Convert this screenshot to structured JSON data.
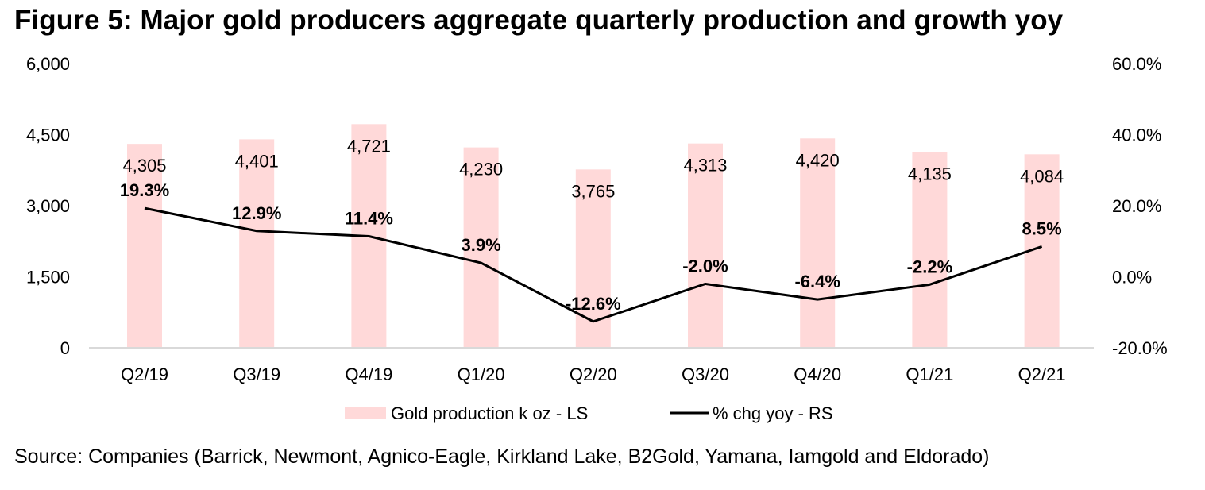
{
  "header": {
    "title": "Figure 5: Major gold producers aggregate quarterly production and growth yoy"
  },
  "footer": {
    "source": "Source: Companies (Barrick, Newmont, Agnico-Eagle, Kirkland Lake, B2Gold, Yamana, Iamgold and Eldorado)"
  },
  "chart_data": {
    "type": "bar",
    "title": "Figure 5: Major gold producers aggregate quarterly production and growth yoy",
    "categories": [
      "Q2/19",
      "Q3/19",
      "Q4/19",
      "Q1/20",
      "Q2/20",
      "Q3/20",
      "Q4/20",
      "Q1/21",
      "Q2/21"
    ],
    "series": [
      {
        "name": "Gold production k oz - LS",
        "type": "bar",
        "axis": "left",
        "color": "#ffd9d9",
        "values": [
          4305,
          4401,
          4721,
          4230,
          3765,
          4313,
          4420,
          4135,
          4084
        ],
        "labels": [
          "4,305",
          "4,401",
          "4,721",
          "4,230",
          "3,765",
          "4,313",
          "4,420",
          "4,135",
          "4,084"
        ]
      },
      {
        "name": "% chg yoy - RS",
        "type": "line",
        "axis": "right",
        "color": "#000000",
        "values": [
          19.3,
          12.9,
          11.4,
          3.9,
          -12.6,
          -2.0,
          -6.4,
          -2.2,
          8.5
        ],
        "labels": [
          "19.3%",
          "12.9%",
          "11.4%",
          "3.9%",
          "-12.6%",
          "-2.0%",
          "-6.4%",
          "-2.2%",
          "8.5%"
        ]
      }
    ],
    "left_axis": {
      "ylim": [
        0,
        6000
      ],
      "ticks": [
        0,
        1500,
        3000,
        4500,
        6000
      ],
      "tick_labels": [
        "0",
        "1,500",
        "3,000",
        "4,500",
        "6,000"
      ]
    },
    "right_axis": {
      "ylim": [
        -20,
        60
      ],
      "ticks": [
        -20,
        0,
        20,
        40,
        60
      ],
      "tick_labels": [
        "-20.0%",
        "0.0%",
        "20.0%",
        "40.0%",
        "60.0%"
      ]
    },
    "xlabel": "",
    "ylabel": "",
    "grid": false,
    "legend": {
      "position": "bottom",
      "entries": [
        "Gold production k oz - LS",
        "% chg yoy - RS"
      ]
    }
  }
}
